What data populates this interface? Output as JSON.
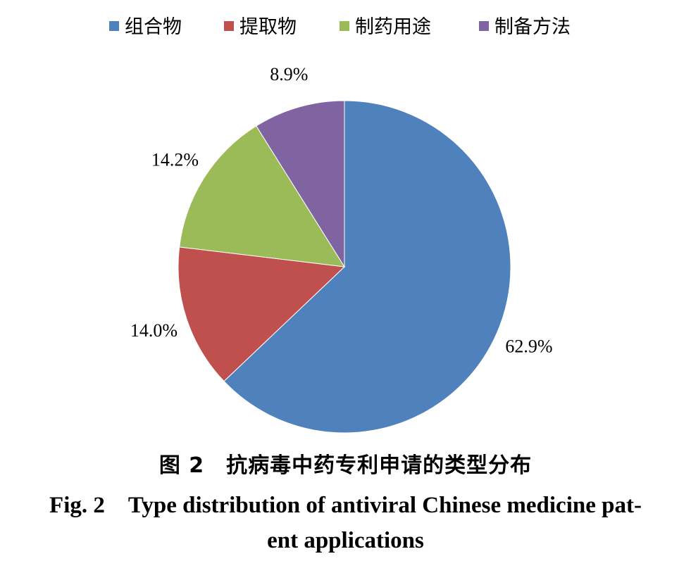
{
  "chart_data": {
    "type": "pie",
    "categories": [
      "组合物",
      "提取物",
      "制药用途",
      "制备方法"
    ],
    "values": [
      62.9,
      14.0,
      14.2,
      8.9
    ],
    "labels": [
      "62.9%",
      "14.0%",
      "14.2%",
      "8.9%"
    ],
    "colors": [
      "#4F81BD",
      "#C0504D",
      "#9BBB59",
      "#8064A2"
    ],
    "start_angle_deg": 0,
    "direction": "clockwise",
    "legend_position": "top"
  },
  "caption": {
    "cn": "图 2　抗病毒中药专利申请的类型分布",
    "en_line1": "Fig. 2　Type distribution of antiviral Chinese medicine pat-",
    "en_line2": "ent applications"
  }
}
